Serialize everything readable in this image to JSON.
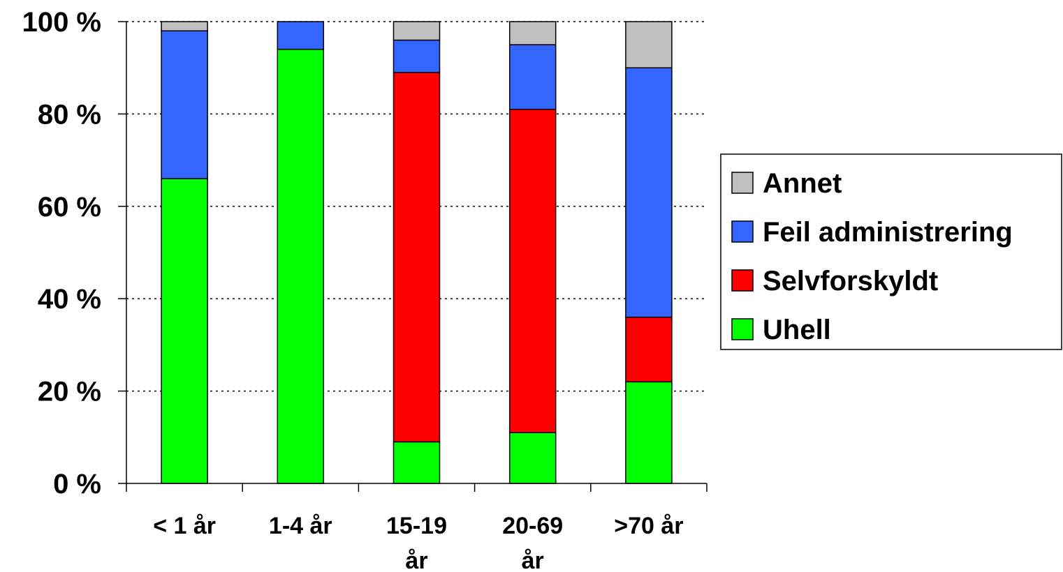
{
  "chart_data": {
    "type": "bar",
    "stacked": true,
    "title": "",
    "xlabel": "",
    "ylabel": "",
    "ylim": [
      0,
      100
    ],
    "y_ticks": [
      "0 %",
      "20 %",
      "40 %",
      "60 %",
      "80 %",
      "100 %"
    ],
    "y_tick_values": [
      0,
      20,
      40,
      60,
      80,
      100
    ],
    "categories": [
      [
        "< 1 år"
      ],
      [
        "1-4 år"
      ],
      [
        "15-19",
        "år"
      ],
      [
        "20-69",
        "år"
      ],
      [
        ">70 år"
      ]
    ],
    "series": [
      {
        "name": "Uhell",
        "color": "#00ff00",
        "values": [
          66,
          94,
          9,
          11,
          22
        ]
      },
      {
        "name": "Selvforskyldt",
        "color": "#ff0000",
        "values": [
          0,
          0,
          80,
          70,
          14
        ]
      },
      {
        "name": "Feil administrering",
        "color": "#3366ff",
        "values": [
          32,
          6,
          7,
          14,
          54
        ]
      },
      {
        "name": "Annet",
        "color": "#c0c0c0",
        "values": [
          2,
          0,
          4,
          5,
          10
        ]
      }
    ],
    "legend_order": [
      "Annet",
      "Feil administrering",
      "Selvforskyldt",
      "Uhell"
    ],
    "grid": "horizontal-dotted",
    "legend_position": "right"
  }
}
